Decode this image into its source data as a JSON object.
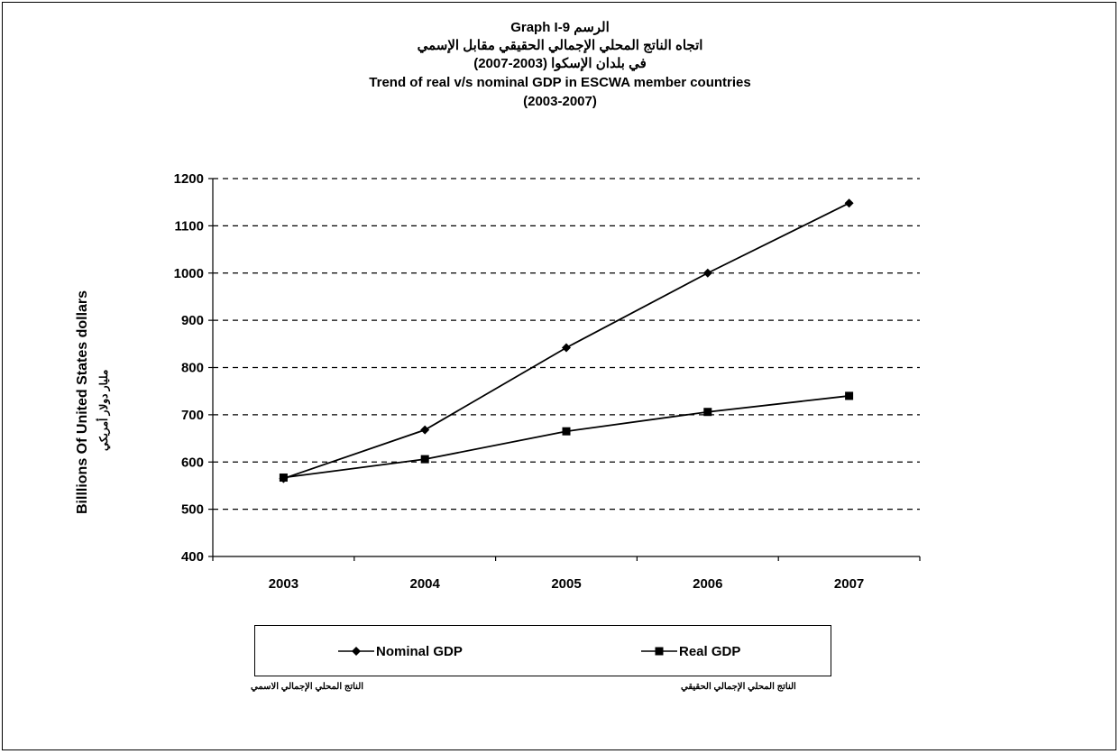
{
  "header": {
    "title_lines": [
      "Graph I-9 الرسم",
      "اتجاه الناتج المحلي الإجمالي الحقيقي مقابل الإسمي",
      "في بلدان الإسكوا (2003-2007)",
      "Trend of real v/s nominal GDP in ESCWA member countries",
      "(2003-2007)"
    ]
  },
  "chart_data": {
    "type": "line",
    "title": "Trend of real v/s nominal GDP in ESCWA member countries (2003-2007)",
    "xlabel": "",
    "ylabel": "Billlions Of United States dollars",
    "ylabel_ar": "مليار دولار أمريكي",
    "categories": [
      "2003",
      "2004",
      "2005",
      "2006",
      "2007"
    ],
    "ylim": [
      400,
      1200
    ],
    "yticks": [
      400,
      500,
      600,
      700,
      800,
      900,
      1000,
      1100,
      1200
    ],
    "grid": "horizontal dashed",
    "legend_position": "bottom",
    "series": [
      {
        "name": "Nominal GDP",
        "name_ar": "الناتج المحلي الإجمالي الاسمي",
        "marker": "diamond",
        "color": "#000000",
        "values": [
          565,
          668,
          842,
          1000,
          1148
        ]
      },
      {
        "name": "Real GDP",
        "name_ar": "الناتج المحلي الإجمالي الحقيقي",
        "marker": "square",
        "color": "#000000",
        "values": [
          567,
          606,
          665,
          706,
          740
        ]
      }
    ]
  }
}
